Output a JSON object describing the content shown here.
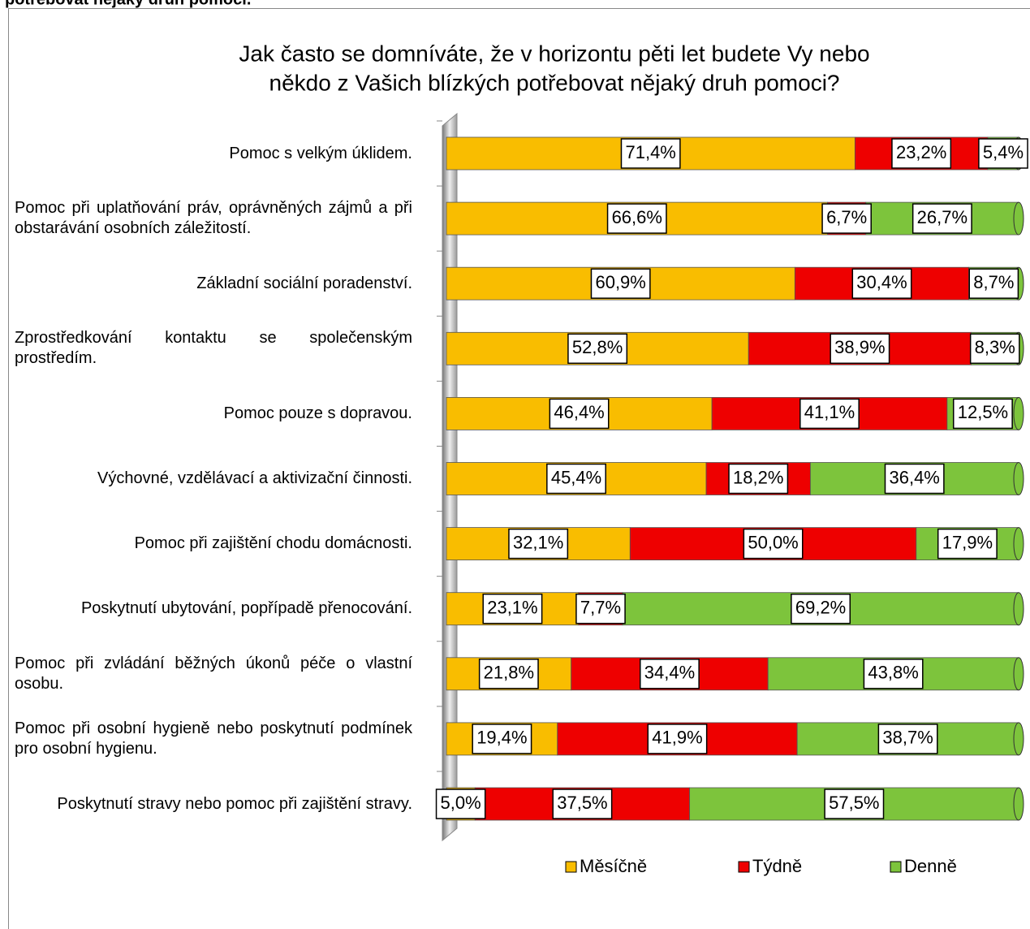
{
  "header_text": "potřebovat nějaký druh pomoci.",
  "chart_data": {
    "type": "stacked-bar-horizontal",
    "title": [
      "Jak často se domníváte, že v horizontu pěti let budete Vy nebo",
      "někdo z Vašich blízkých potřebovat nějaký druh pomoci?"
    ],
    "categories": [
      "Pomoc s velkým úklidem.",
      "Pomoc při uplatňování práv, oprávněných zájmů a při obstarávání osobních záležitostí.",
      "Základní sociální poradenství.",
      "Zprostředkování kontaktu se společenským prostředím.",
      "Pomoc pouze s dopravou.",
      "Výchovné, vzdělávací a aktivizační činnosti.",
      "Pomoc při zajištění chodu domácnosti.",
      "Poskytnutí ubytování, popřípadě přenocování.",
      "Pomoc při zvládání běžných úkonů péče o vlastní osobu.",
      "Pomoc při osobní hygieně nebo poskytnutí podmínek pro osobní hygienu.",
      "Poskytnutí stravy nebo pomoc při zajištění stravy."
    ],
    "xlim": [
      0,
      100
    ],
    "series": [
      {
        "name": "Měsíčně",
        "color": "#f9bd00",
        "values": [
          71.4,
          66.6,
          60.9,
          52.8,
          46.4,
          45.4,
          32.1,
          23.1,
          21.8,
          19.4,
          5.0
        ],
        "value_labels": [
          "71,4%",
          "66,6%",
          "60,9%",
          "52,8%",
          "46,4%",
          "45,4%",
          "32,1%",
          "23,1%",
          "21,8%",
          "19,4%",
          "5,0%"
        ]
      },
      {
        "name": "Týdně",
        "color": "#ee0000",
        "values": [
          23.2,
          6.7,
          30.4,
          38.9,
          41.1,
          18.2,
          50.0,
          7.7,
          34.4,
          41.9,
          37.5
        ],
        "value_labels": [
          "23,2%",
          "6,7%",
          "30,4%",
          "38,9%",
          "41,1%",
          "18,2%",
          "50,0%",
          "7,7%",
          "34,4%",
          "41,9%",
          "37,5%"
        ]
      },
      {
        "name": "Denně",
        "color": "#7dc43c",
        "values": [
          5.4,
          26.7,
          8.7,
          8.3,
          12.5,
          36.4,
          17.9,
          69.2,
          43.8,
          38.7,
          57.5
        ],
        "value_labels": [
          "5,4%",
          "26,7%",
          "8,7%",
          "8,3%",
          "12,5%",
          "36,4%",
          "17,9%",
          "69,2%",
          "43,8%",
          "38,7%",
          "57,5%"
        ]
      }
    ],
    "legend": "bottom"
  }
}
